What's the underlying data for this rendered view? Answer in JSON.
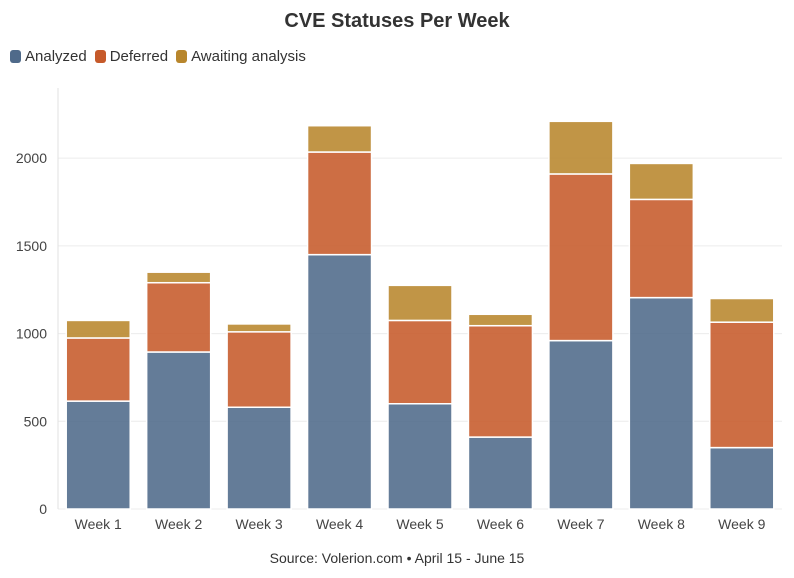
{
  "chart_data": {
    "type": "bar",
    "stacked": true,
    "title": "CVE Statuses Per Week",
    "source": "Source: Volerion.com • April 15 - June 15",
    "categories": [
      "Week 1",
      "Week 2",
      "Week 3",
      "Week 4",
      "Week 5",
      "Week 6",
      "Week 7",
      "Week 8",
      "Week 9"
    ],
    "series": [
      {
        "name": "Analyzed",
        "color": "#4f6a8a",
        "values": [
          615,
          895,
          580,
          1450,
          600,
          410,
          960,
          1205,
          350
        ]
      },
      {
        "name": "Deferred",
        "color": "#c65a2a",
        "values": [
          360,
          395,
          430,
          585,
          475,
          635,
          950,
          560,
          715
        ]
      },
      {
        "name": "Awaiting analysis",
        "color": "#b8862c",
        "values": [
          100,
          60,
          45,
          150,
          200,
          65,
          300,
          205,
          135
        ]
      }
    ],
    "y_ticks": [
      "0",
      "500",
      "1000",
      "1500",
      "2000"
    ],
    "ylim": [
      0,
      2400
    ],
    "grid": true,
    "legend_position": "top-left"
  }
}
